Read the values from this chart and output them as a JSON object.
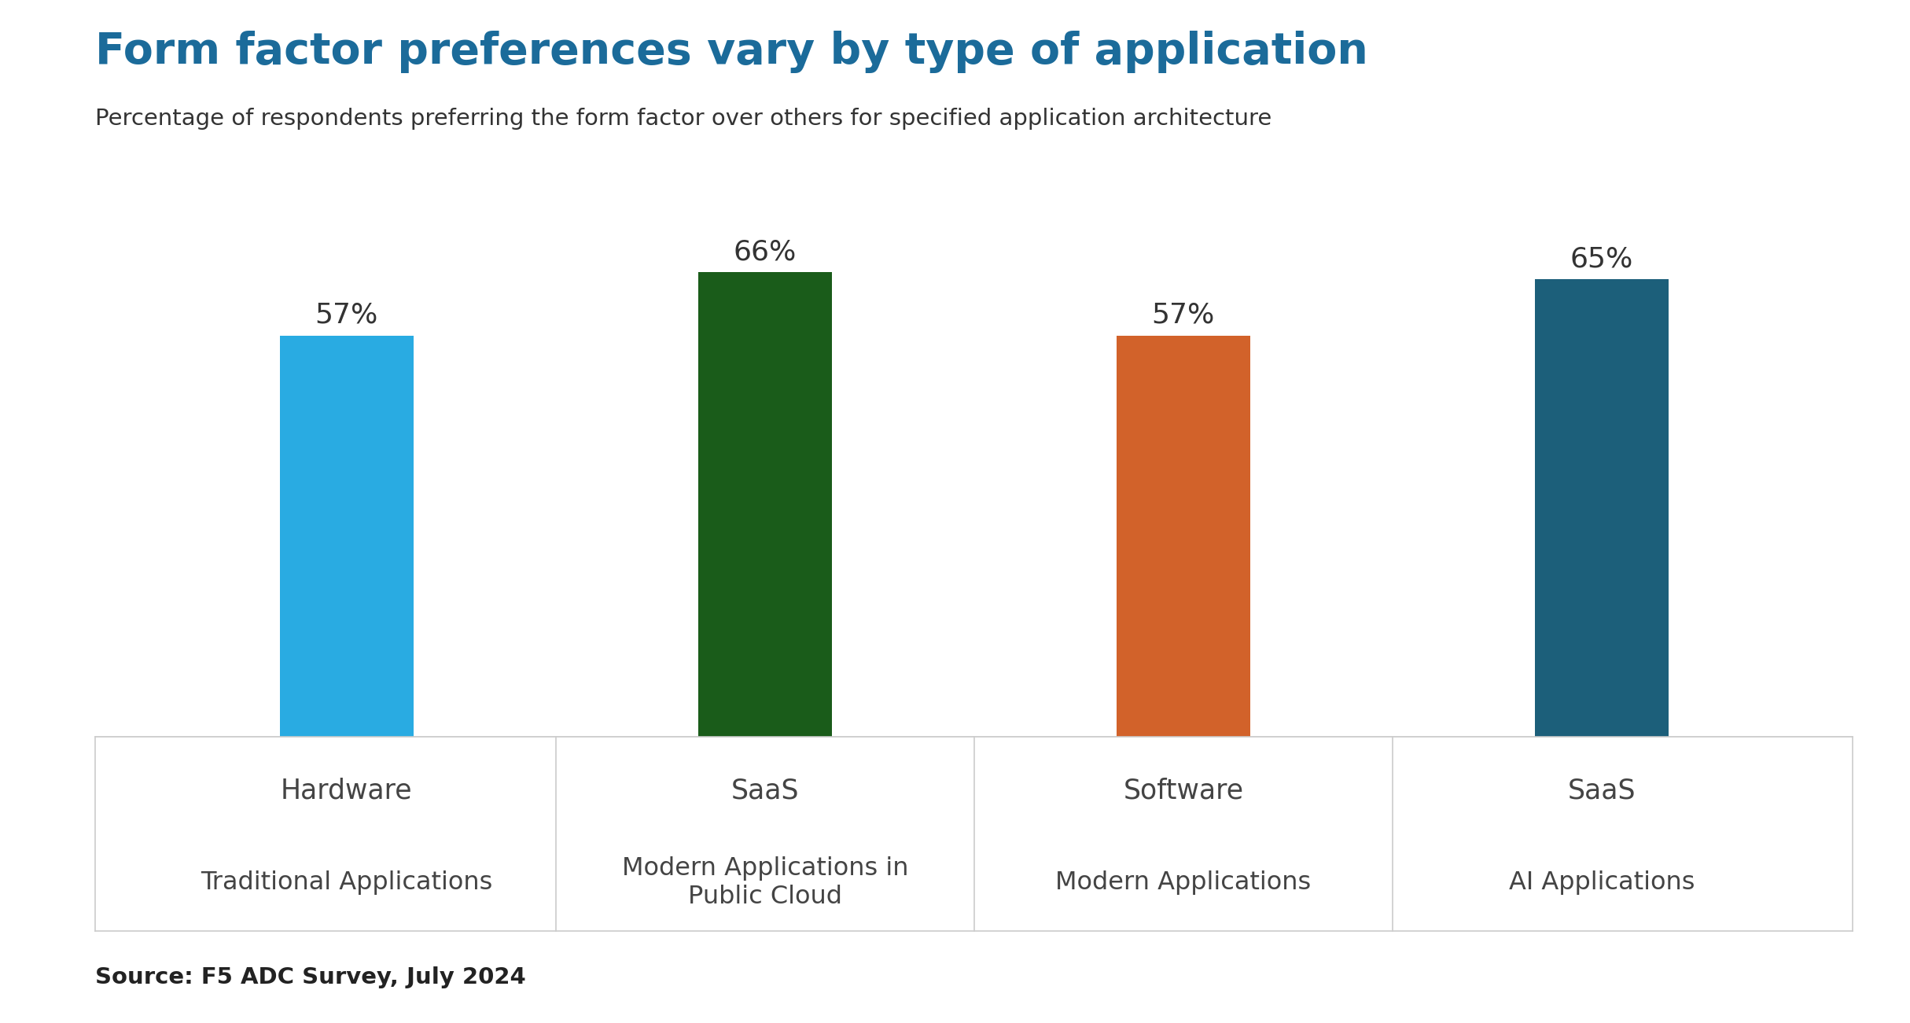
{
  "title": "Form factor preferences vary by type of application",
  "subtitle": "Percentage of respondents preferring the form factor over others for specified application architecture",
  "source": "Source: F5 ADC Survey, July 2024",
  "values": [
    57,
    66,
    57,
    65
  ],
  "labels": [
    "57%",
    "66%",
    "57%",
    "65%"
  ],
  "bar_colors": [
    "#29ABE2",
    "#1A5C1A",
    "#D2622A",
    "#1C5F7A"
  ],
  "form_factors": [
    "Hardware",
    "SaaS",
    "Software",
    "SaaS"
  ],
  "app_types": [
    "Traditional Applications",
    "Modern Applications in\nPublic Cloud",
    "Modern Applications",
    "AI Applications"
  ],
  "title_color": "#1B6B9A",
  "subtitle_color": "#333333",
  "label_fontsize": 26,
  "title_fontsize": 40,
  "subtitle_fontsize": 21,
  "source_fontsize": 21,
  "form_factor_fontsize": 25,
  "app_type_fontsize": 23,
  "background_color": "#FFFFFF",
  "ylim": [
    0,
    80
  ],
  "bar_width": 0.32,
  "separator_color": "#CCCCCC"
}
